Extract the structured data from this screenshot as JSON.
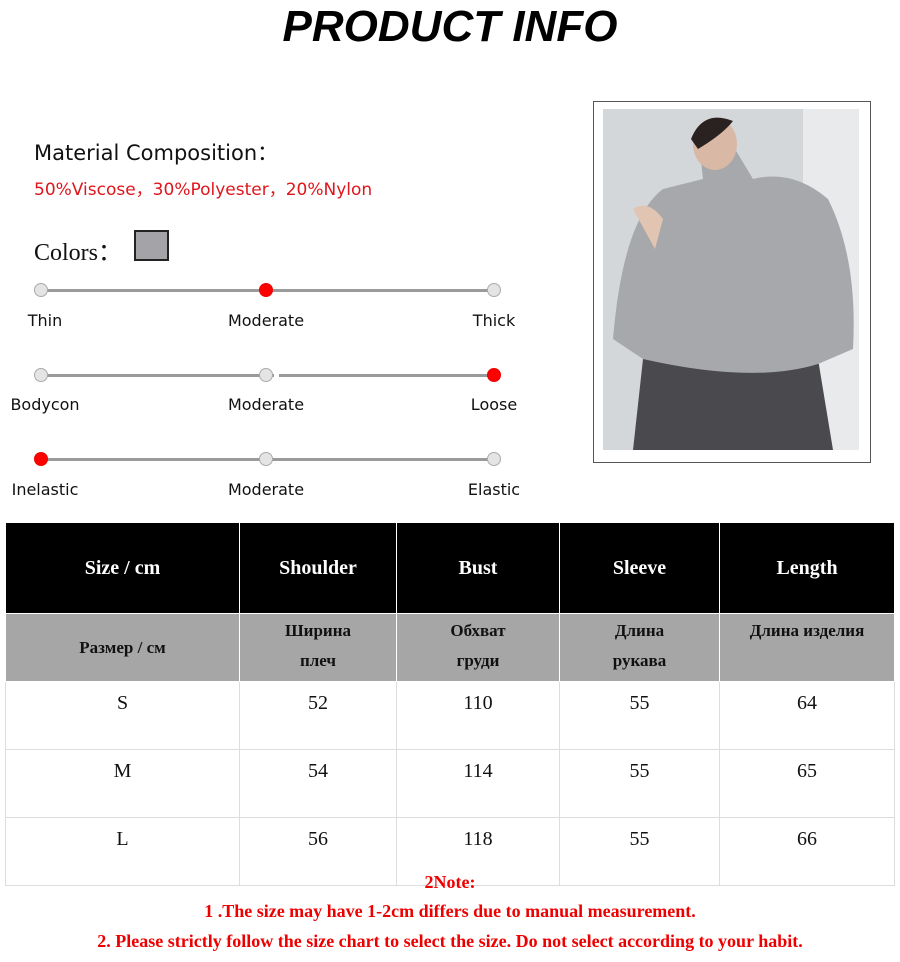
{
  "title": "PRODUCT INFO",
  "material": {
    "label": "Material Composition：",
    "value": "50%Viscose，30%Polyester，20%Nylon"
  },
  "colors": {
    "label": "Colors：",
    "swatch": "#a4a4a8"
  },
  "scales": [
    {
      "labels": [
        "Thin",
        "Moderate",
        "Thick"
      ],
      "selected": 1
    },
    {
      "labels": [
        "Bodycon",
        "Moderate",
        "Loose"
      ],
      "selected": 2
    },
    {
      "labels": [
        "Inelastic",
        "Moderate",
        "Elastic"
      ],
      "selected": 0
    }
  ],
  "size_table": {
    "headers": [
      "Size / cm",
      "Shoulder",
      "Bust",
      "Sleeve",
      "Length"
    ],
    "headers_ru": [
      "Размер / см",
      "Ширина плеч",
      "Обхват груди",
      "Длина рукава",
      "Длина изделия"
    ],
    "rows": [
      [
        "S",
        "52",
        "110",
        "55",
        "64"
      ],
      [
        "M",
        "54",
        "114",
        "55",
        "65"
      ],
      [
        "L",
        "56",
        "118",
        "55",
        "66"
      ]
    ]
  },
  "notes": {
    "title": "2Note:",
    "lines": [
      "1 .The size may have 1-2cm differs due to manual measurement.",
      "2. Please strictly follow the size chart to select the size. Do not select according to your habit."
    ]
  }
}
